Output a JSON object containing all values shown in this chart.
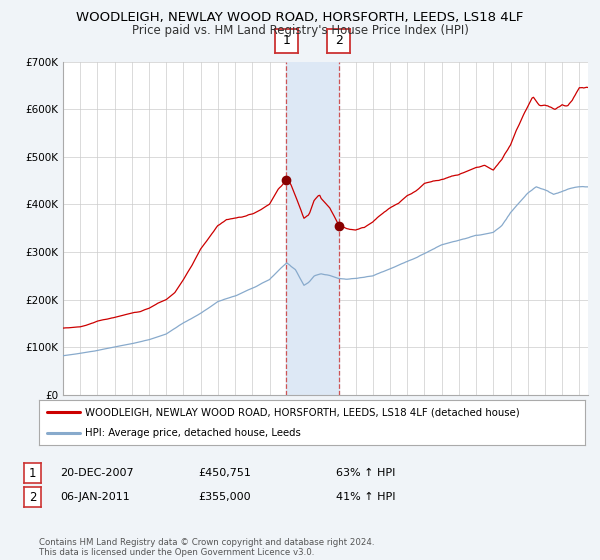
{
  "title": "WOODLEIGH, NEWLAY WOOD ROAD, HORSFORTH, LEEDS, LS18 4LF",
  "subtitle": "Price paid vs. HM Land Registry's House Price Index (HPI)",
  "legend_line1": "WOODLEIGH, NEWLAY WOOD ROAD, HORSFORTH, LEEDS, LS18 4LF (detached house)",
  "legend_line2": "HPI: Average price, detached house, Leeds",
  "transaction1_date": "20-DEC-2007",
  "transaction1_price": "£450,751",
  "transaction1_hpi": "63% ↑ HPI",
  "transaction1_year": 2007.97,
  "transaction1_value": 450751,
  "transaction2_date": "06-JAN-2011",
  "transaction2_price": "£355,000",
  "transaction2_hpi": "41% ↑ HPI",
  "transaction2_year": 2011.02,
  "transaction2_value": 355000,
  "ylim": [
    0,
    700000
  ],
  "yticks": [
    0,
    100000,
    200000,
    300000,
    400000,
    500000,
    600000,
    700000
  ],
  "ytick_labels": [
    "£0",
    "£100K",
    "£200K",
    "£300K",
    "£400K",
    "£500K",
    "£600K",
    "£700K"
  ],
  "xlim_start": 1995.0,
  "xlim_end": 2025.5,
  "background_color": "#f0f4f8",
  "plot_bg_color": "#ffffff",
  "red_line_color": "#cc0000",
  "blue_line_color": "#88aacc",
  "marker_color": "#880000",
  "grid_color": "#cccccc",
  "vline_color": "#cc4444",
  "span_color": "#dde8f5",
  "footnote": "Contains HM Land Registry data © Crown copyright and database right 2024.\nThis data is licensed under the Open Government Licence v3.0.",
  "hpi_key_points": [
    [
      1995.0,
      82000
    ],
    [
      1996.0,
      87000
    ],
    [
      1997.0,
      93000
    ],
    [
      1998.0,
      100000
    ],
    [
      1999.0,
      107000
    ],
    [
      2000.0,
      115000
    ],
    [
      2001.0,
      127000
    ],
    [
      2002.0,
      150000
    ],
    [
      2003.0,
      170000
    ],
    [
      2004.0,
      195000
    ],
    [
      2005.0,
      207000
    ],
    [
      2006.0,
      222000
    ],
    [
      2007.0,
      240000
    ],
    [
      2007.5,
      258000
    ],
    [
      2008.0,
      274000
    ],
    [
      2008.5,
      260000
    ],
    [
      2009.0,
      228000
    ],
    [
      2009.3,
      235000
    ],
    [
      2009.6,
      248000
    ],
    [
      2010.0,
      252000
    ],
    [
      2010.5,
      248000
    ],
    [
      2011.0,
      242000
    ],
    [
      2011.5,
      240000
    ],
    [
      2012.0,
      242000
    ],
    [
      2013.0,
      248000
    ],
    [
      2014.0,
      262000
    ],
    [
      2015.0,
      278000
    ],
    [
      2016.0,
      295000
    ],
    [
      2017.0,
      313000
    ],
    [
      2018.0,
      323000
    ],
    [
      2019.0,
      332000
    ],
    [
      2020.0,
      338000
    ],
    [
      2020.5,
      352000
    ],
    [
      2021.0,
      378000
    ],
    [
      2021.5,
      398000
    ],
    [
      2022.0,
      418000
    ],
    [
      2022.5,
      432000
    ],
    [
      2023.0,
      425000
    ],
    [
      2023.5,
      415000
    ],
    [
      2024.0,
      420000
    ],
    [
      2024.5,
      428000
    ],
    [
      2025.0,
      430000
    ]
  ],
  "prop_key_points": [
    [
      1995.0,
      140000
    ],
    [
      1996.0,
      143000
    ],
    [
      1996.5,
      148000
    ],
    [
      1997.0,
      155000
    ],
    [
      1998.0,
      163000
    ],
    [
      1998.5,
      168000
    ],
    [
      1999.0,
      172000
    ],
    [
      1999.5,
      175000
    ],
    [
      2000.0,
      182000
    ],
    [
      2000.5,
      192000
    ],
    [
      2001.0,
      200000
    ],
    [
      2001.5,
      215000
    ],
    [
      2002.0,
      242000
    ],
    [
      2002.5,
      272000
    ],
    [
      2003.0,
      308000
    ],
    [
      2003.5,
      332000
    ],
    [
      2004.0,
      358000
    ],
    [
      2004.5,
      370000
    ],
    [
      2005.0,
      373000
    ],
    [
      2005.5,
      376000
    ],
    [
      2006.0,
      382000
    ],
    [
      2006.5,
      390000
    ],
    [
      2007.0,
      402000
    ],
    [
      2007.5,
      432000
    ],
    [
      2007.97,
      450751
    ],
    [
      2008.2,
      445000
    ],
    [
      2008.6,
      408000
    ],
    [
      2009.0,
      370000
    ],
    [
      2009.3,
      378000
    ],
    [
      2009.6,
      408000
    ],
    [
      2009.9,
      418000
    ],
    [
      2010.0,
      410000
    ],
    [
      2010.5,
      390000
    ],
    [
      2011.02,
      355000
    ],
    [
      2011.5,
      348000
    ],
    [
      2012.0,
      345000
    ],
    [
      2012.5,
      350000
    ],
    [
      2013.0,
      362000
    ],
    [
      2013.5,
      378000
    ],
    [
      2014.0,
      392000
    ],
    [
      2014.5,
      402000
    ],
    [
      2015.0,
      418000
    ],
    [
      2015.5,
      428000
    ],
    [
      2016.0,
      442000
    ],
    [
      2016.5,
      448000
    ],
    [
      2017.0,
      452000
    ],
    [
      2017.5,
      458000
    ],
    [
      2018.0,
      462000
    ],
    [
      2018.5,
      470000
    ],
    [
      2019.0,
      478000
    ],
    [
      2019.5,
      482000
    ],
    [
      2020.0,
      472000
    ],
    [
      2020.5,
      492000
    ],
    [
      2021.0,
      522000
    ],
    [
      2021.3,
      548000
    ],
    [
      2021.5,
      562000
    ],
    [
      2021.7,
      578000
    ],
    [
      2022.0,
      598000
    ],
    [
      2022.3,
      618000
    ],
    [
      2022.5,
      608000
    ],
    [
      2022.7,
      600000
    ],
    [
      2023.0,
      602000
    ],
    [
      2023.3,
      598000
    ],
    [
      2023.6,
      592000
    ],
    [
      2024.0,
      602000
    ],
    [
      2024.3,
      598000
    ],
    [
      2024.6,
      612000
    ],
    [
      2025.0,
      638000
    ]
  ]
}
